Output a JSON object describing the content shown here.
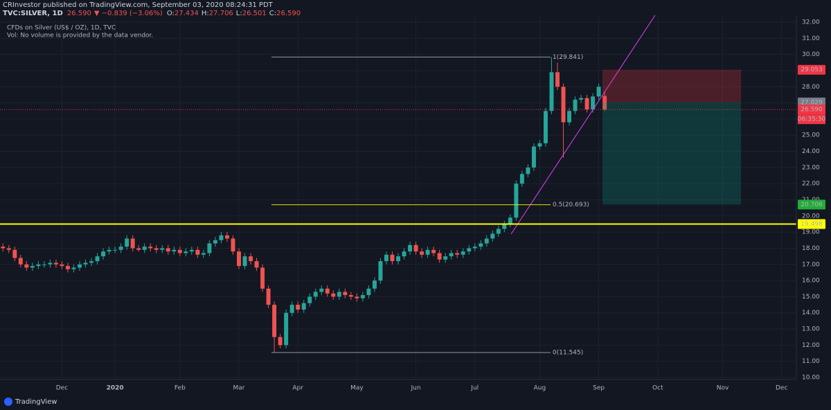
{
  "header": {
    "publisher": "CRInvestor published on TradingView.com, September 03, 2020 08:24:31 PDT",
    "symbol": "TVC:SILVER, 1D",
    "last": "26.590",
    "change": "▼ −0.839 (−3.06%)",
    "ohlc": [
      {
        "key": "O:",
        "value": "27.434"
      },
      {
        "key": "H:",
        "value": "27.706"
      },
      {
        "key": "L:",
        "value": "26.501"
      },
      {
        "key": "C:",
        "value": "26.590"
      }
    ]
  },
  "legend": {
    "title": "CFDs on Silver (US$ / OZ), 1D, TVC",
    "volume": "Vol: No volume is provided by the data vendor."
  },
  "chart_data": {
    "type": "candlestick",
    "categories": [
      null,
      null,
      null,
      null,
      null,
      null,
      null,
      null,
      null,
      null,
      "Dec",
      null,
      null,
      null,
      null,
      null,
      null,
      null,
      null,
      "2020",
      null,
      null,
      null,
      null,
      null,
      null,
      null,
      null,
      null,
      null,
      "Feb",
      null,
      null,
      null,
      null,
      null,
      null,
      null,
      null,
      null,
      "Mar",
      null,
      null,
      null,
      null,
      null,
      null,
      null,
      null,
      null,
      "Apr",
      null,
      null,
      null,
      null,
      null,
      null,
      null,
      null,
      null,
      "May",
      null,
      null,
      null,
      null,
      null,
      null,
      null,
      null,
      null,
      "Jun",
      null,
      null,
      null,
      null,
      null,
      null,
      null,
      null,
      null,
      "Jul",
      null,
      null,
      null,
      null,
      null,
      null,
      null,
      null,
      null,
      null,
      "Aug",
      null,
      null,
      null,
      null,
      null,
      null,
      null,
      null,
      null,
      "Sep",
      null,
      null,
      null,
      null,
      null,
      null,
      null,
      null,
      null,
      "Oct",
      null,
      null,
      null,
      null,
      null,
      null,
      null,
      null,
      null,
      null,
      "Nov",
      null,
      null,
      null,
      null,
      null,
      null,
      null,
      null,
      null,
      "Dec",
      null,
      null
    ],
    "open": [
      18.1,
      18.0,
      17.9,
      17.4,
      17.0,
      16.8,
      16.9,
      17.0,
      17.0,
      17.1,
      17.0,
      16.9,
      16.7,
      16.8,
      17.0,
      17.1,
      17.2,
      17.5,
      17.8,
      17.9,
      17.9,
      18.1,
      18.6,
      18.0,
      17.9,
      18.1,
      18.0,
      17.9,
      18.0,
      17.8,
      17.9,
      17.7,
      17.8,
      17.9,
      17.6,
      17.7,
      18.3,
      18.5,
      18.8,
      18.6,
      17.8,
      16.9,
      17.5,
      17.2,
      16.8,
      15.5,
      14.5,
      12.5,
      12.0,
      14.0,
      14.5,
      14.2,
      14.6,
      15.0,
      15.3,
      15.5,
      15.2,
      15.0,
      15.3,
      15.1,
      15.0,
      14.9,
      15.1,
      15.5,
      16.0,
      17.2,
      17.6,
      17.2,
      17.5,
      17.8,
      18.2,
      17.8,
      17.6,
      17.9,
      17.7,
      17.3,
      17.5,
      17.7,
      17.6,
      17.8,
      18.0,
      18.1,
      18.3,
      18.6,
      18.9,
      19.2,
      19.5,
      19.9,
      22.0,
      22.6,
      23.0,
      24.3,
      24.5,
      26.5,
      28.9,
      28.0,
      25.8,
      26.5,
      27.2,
      27.3,
      26.6,
      27.4,
      27.434,
      null,
      null,
      null,
      null,
      null,
      null,
      null,
      null,
      null,
      null,
      null,
      null,
      null,
      null,
      null,
      null,
      null,
      null,
      null,
      null,
      null,
      null,
      null,
      null,
      null,
      null,
      null,
      null,
      null,
      null,
      null,
      null
    ],
    "high": [
      18.3,
      18.2,
      18.1,
      17.6,
      17.2,
      17.1,
      17.2,
      17.2,
      17.3,
      17.3,
      17.2,
      17.1,
      17.0,
      17.2,
      17.3,
      17.4,
      17.7,
      18.0,
      18.1,
      18.1,
      18.3,
      18.8,
      18.8,
      18.2,
      18.3,
      18.3,
      18.2,
      18.2,
      18.2,
      18.1,
      18.1,
      18.0,
      18.1,
      18.1,
      17.9,
      18.5,
      18.7,
      19.0,
      19.0,
      18.8,
      18.0,
      17.7,
      17.7,
      17.4,
      17.0,
      15.7,
      14.7,
      12.7,
      14.2,
      14.7,
      14.7,
      14.8,
      15.2,
      15.5,
      15.7,
      15.7,
      15.4,
      15.5,
      15.5,
      15.3,
      15.2,
      15.3,
      15.7,
      16.2,
      17.4,
      17.8,
      17.8,
      17.7,
      18.0,
      18.4,
      18.4,
      18.0,
      18.1,
      18.1,
      17.9,
      17.7,
      17.9,
      17.9,
      18.0,
      18.2,
      18.3,
      18.5,
      18.8,
      19.1,
      19.4,
      19.7,
      20.1,
      22.2,
      22.8,
      23.2,
      24.5,
      24.7,
      26.7,
      29.84,
      29.5,
      28.2,
      26.7,
      27.4,
      27.5,
      27.5,
      27.6,
      28.2,
      27.706,
      null,
      null,
      null,
      null,
      null,
      null,
      null,
      null,
      null,
      null,
      null,
      null,
      null,
      null,
      null,
      null,
      null,
      null,
      null,
      null,
      null,
      null,
      null,
      null,
      null,
      null,
      null,
      null,
      null,
      null,
      null,
      null
    ],
    "low": [
      17.8,
      17.7,
      17.2,
      16.8,
      16.6,
      16.6,
      16.7,
      16.8,
      16.8,
      16.8,
      16.7,
      16.5,
      16.5,
      16.6,
      16.8,
      16.9,
      17.0,
      17.3,
      17.6,
      17.7,
      17.7,
      17.9,
      17.8,
      17.8,
      17.7,
      17.8,
      17.7,
      17.7,
      17.6,
      17.6,
      17.5,
      17.5,
      17.6,
      17.4,
      17.4,
      17.5,
      18.1,
      18.3,
      18.4,
      17.6,
      16.7,
      16.7,
      17.0,
      16.6,
      15.3,
      14.3,
      11.545,
      11.8,
      11.8,
      13.8,
      14.0,
      14.0,
      14.4,
      14.8,
      15.1,
      15.0,
      14.8,
      14.8,
      14.9,
      14.8,
      14.7,
      14.7,
      14.9,
      15.3,
      15.8,
      17.0,
      17.0,
      17.0,
      17.3,
      17.6,
      17.6,
      17.4,
      17.4,
      17.5,
      17.1,
      17.1,
      17.3,
      17.4,
      17.4,
      17.6,
      17.8,
      17.9,
      18.1,
      18.4,
      18.7,
      19.0,
      19.3,
      19.7,
      21.8,
      22.4,
      22.8,
      24.1,
      24.3,
      26.3,
      27.8,
      23.6,
      25.6,
      26.3,
      27.0,
      26.4,
      26.4,
      27.2,
      26.501,
      null,
      null,
      null,
      null,
      null,
      null,
      null,
      null,
      null,
      null,
      null,
      null,
      null,
      null,
      null,
      null,
      null,
      null,
      null,
      null,
      null,
      null,
      null,
      null,
      null,
      null,
      null,
      null,
      null,
      null,
      null,
      null
    ],
    "close": [
      18.0,
      17.9,
      17.4,
      17.0,
      16.8,
      16.9,
      17.0,
      17.0,
      17.1,
      17.0,
      16.9,
      16.7,
      16.8,
      17.0,
      17.1,
      17.2,
      17.5,
      17.8,
      17.9,
      17.9,
      18.1,
      18.6,
      18.0,
      17.9,
      18.1,
      18.0,
      17.9,
      18.0,
      17.8,
      17.9,
      17.7,
      17.8,
      17.9,
      17.6,
      17.7,
      18.3,
      18.5,
      18.8,
      18.6,
      17.8,
      16.9,
      17.5,
      17.2,
      16.8,
      15.5,
      14.5,
      12.5,
      12.0,
      14.0,
      14.5,
      14.2,
      14.6,
      15.0,
      15.3,
      15.5,
      15.2,
      15.0,
      15.3,
      15.1,
      15.0,
      14.9,
      15.1,
      15.5,
      16.0,
      17.2,
      17.6,
      17.2,
      17.5,
      17.8,
      18.2,
      17.8,
      17.6,
      17.9,
      17.7,
      17.3,
      17.5,
      17.7,
      17.6,
      17.8,
      18.0,
      18.1,
      18.3,
      18.6,
      18.9,
      19.2,
      19.5,
      19.9,
      22.0,
      22.6,
      23.0,
      24.3,
      24.5,
      26.5,
      28.9,
      28.0,
      25.8,
      26.5,
      27.2,
      27.3,
      26.6,
      27.4,
      28.0,
      26.59,
      null,
      null,
      null,
      null,
      null,
      null,
      null,
      null,
      null,
      null,
      null,
      null,
      null,
      null,
      null,
      null,
      null,
      null,
      null,
      null,
      null,
      null,
      null,
      null,
      null,
      null,
      null,
      null,
      null,
      null,
      null,
      null
    ],
    "up_color": "#26a69a",
    "down_color": "#ef5350",
    "ylim": [
      9.87,
      32.43
    ],
    "yticks": [
      {
        "value": 10,
        "label": "10.00"
      },
      {
        "value": 11,
        "label": "11.00"
      },
      {
        "value": 12,
        "label": "12.00"
      },
      {
        "value": 13,
        "label": "13.00"
      },
      {
        "value": 14,
        "label": "14.00"
      },
      {
        "value": 15,
        "label": "15.00"
      },
      {
        "value": 16,
        "label": "16.00"
      },
      {
        "value": 17,
        "label": "17.00"
      },
      {
        "value": 18,
        "label": "18.00"
      },
      {
        "value": 19,
        "label": "19.00"
      },
      {
        "value": 20,
        "label": "20.00"
      },
      {
        "value": 21,
        "label": "21.00"
      },
      {
        "value": 22,
        "label": "22.00"
      },
      {
        "value": 23,
        "label": "23.00"
      },
      {
        "value": 24,
        "label": "24.00"
      },
      {
        "value": 25,
        "label": "25.00"
      },
      {
        "value": 26,
        "label": "26.00"
      },
      {
        "value": 27,
        "label": "27.00"
      },
      {
        "value": 28,
        "label": "28.00"
      },
      {
        "value": 29,
        "label": "29.00"
      },
      {
        "value": 30,
        "label": "30.00"
      },
      {
        "value": 31,
        "label": "31.00"
      },
      {
        "value": 32,
        "label": "32.00"
      }
    ],
    "grid": true,
    "levels": [
      {
        "value": 29.053,
        "color": "#f23645"
      },
      {
        "value": 27.029,
        "color": "#787b86"
      },
      {
        "value": 26.59,
        "label": "26.590",
        "color": "#f23645"
      },
      {
        "value": 20.706,
        "color": "#22ab38"
      },
      {
        "value": 19.498,
        "color": "#ffff00"
      }
    ],
    "countdown": "06:35:30",
    "fib": [
      {
        "value": 29.841,
        "label": "1(29.841)",
        "color": "#9598a1"
      },
      {
        "value": 20.693,
        "label": "0.5(20.693)",
        "color": "#e5e500"
      },
      {
        "value": 11.545,
        "label": "0(11.545)",
        "color": "#9598a1"
      }
    ]
  },
  "footer": {
    "brand": "TradingView"
  }
}
